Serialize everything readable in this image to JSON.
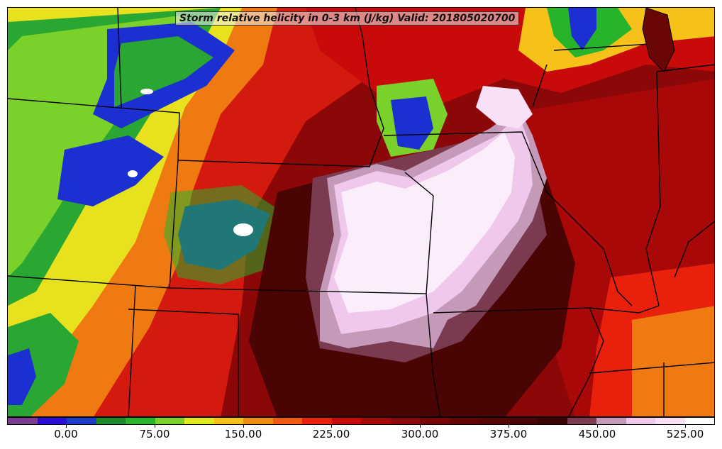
{
  "title": "Storm relative helicity in 0-3 km (J/kg) Valid: 201805020700",
  "colorbar": {
    "colors": [
      "#7a3b91",
      "#2a0fd6",
      "#1c3cc8",
      "#1a8a2a",
      "#27b32a",
      "#7ad12a",
      "#e0e81e",
      "#f6c21a",
      "#f08c12",
      "#f25a10",
      "#e8200c",
      "#c80a0a",
      "#a80808",
      "#8c0808",
      "#760606",
      "#640404",
      "#560404",
      "#4a0404",
      "#3c0202",
      "#7a3a50",
      "#c49ab8",
      "#f0c8ec",
      "#f8e0f6",
      "#ffffff"
    ],
    "tick_labels": [
      "0.00",
      "75.00",
      "150.00",
      "225.00",
      "300.00",
      "375.00",
      "450.00",
      "525.00"
    ]
  },
  "palette": {
    "dark_red": "#6a0606",
    "red": "#d41a0e",
    "orange": "#f07a12",
    "yellow": "#e8e21e",
    "green": "#2aa632",
    "blue": "#1c2fd0",
    "purple": "#7a3b91",
    "pink": "#f4d2f0",
    "white_pink": "#fbeefa",
    "maroon": "#3e0202"
  }
}
